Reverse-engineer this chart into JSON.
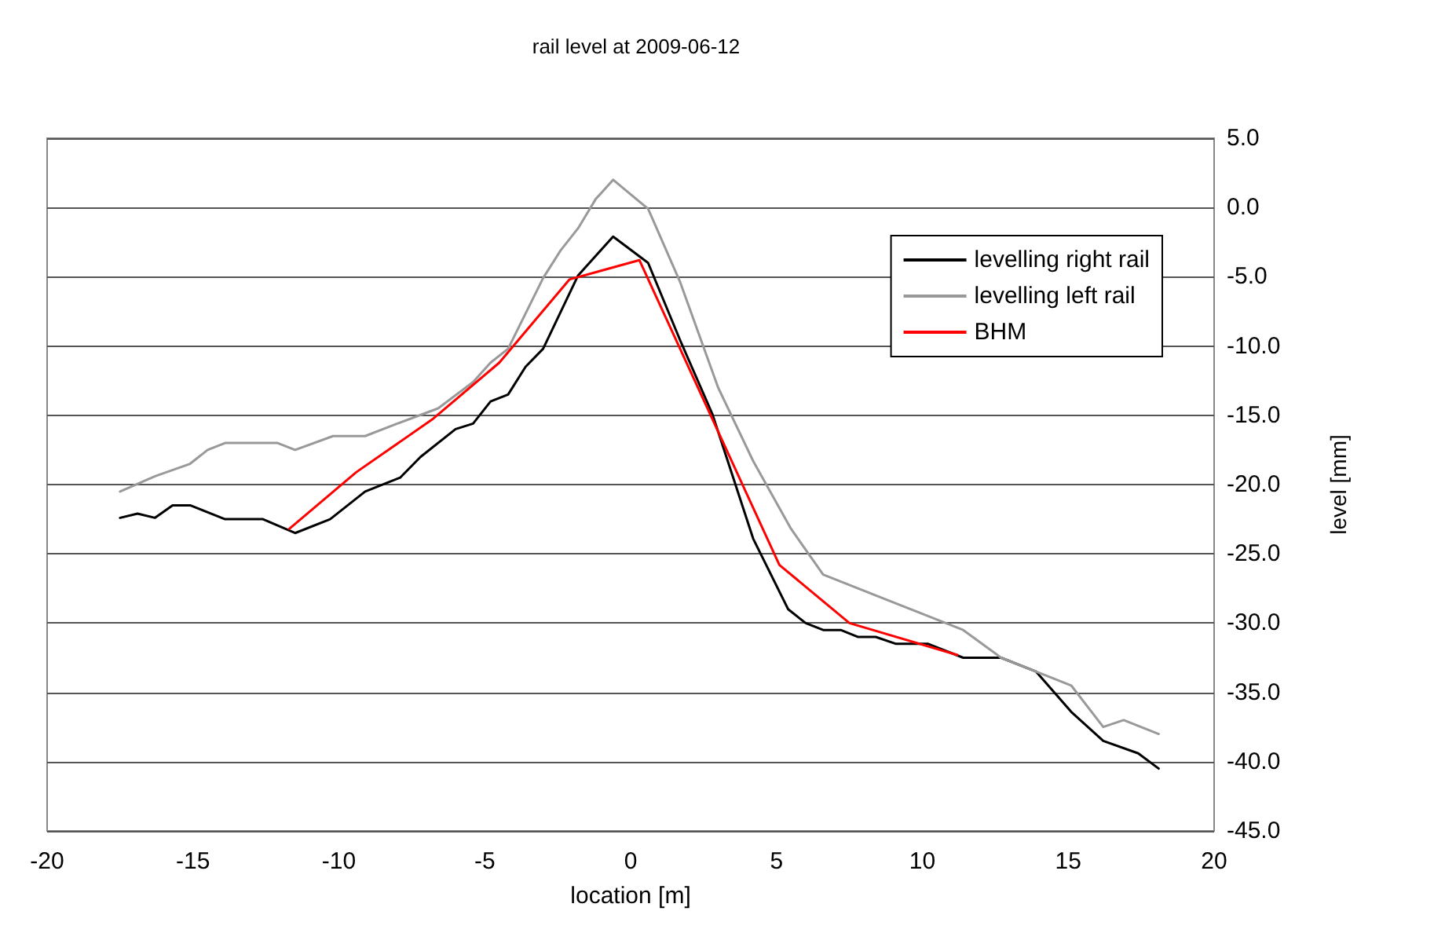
{
  "chart_data": {
    "type": "line",
    "title": "rail level at 2009-06-12",
    "xlabel": "location [m]",
    "ylabel": "level [mm]",
    "xlim": [
      -20,
      20
    ],
    "xticks": [
      -20,
      -15,
      -10,
      -5,
      0,
      5,
      10,
      15,
      20
    ],
    "ylim": [
      -45,
      5
    ],
    "yticks": [
      {
        "value": 5,
        "label": "5.0"
      },
      {
        "value": 0,
        "label": "0.0"
      },
      {
        "value": -5,
        "label": "-5.0"
      },
      {
        "value": -10,
        "label": "-10.0"
      },
      {
        "value": -15,
        "label": "-15.0"
      },
      {
        "value": -20,
        "label": "-20.0"
      },
      {
        "value": -25,
        "label": "-25.0"
      },
      {
        "value": -30,
        "label": "-30.0"
      },
      {
        "value": -35,
        "label": "-35.0"
      },
      {
        "value": -40,
        "label": "-40.0"
      },
      {
        "value": -45,
        "label": "-45.0"
      }
    ],
    "grid": "y",
    "legend": "top right",
    "marker": "none",
    "line_style": "solid",
    "series": [
      {
        "name": "levelling right rail",
        "color": "#000000",
        "x": [
          -17.5,
          -16.9,
          -16.3,
          -15.7,
          -15.1,
          -13.9,
          -12.6,
          -11.5,
          -10.3,
          -9.1,
          -7.9,
          -7.2,
          -6.0,
          -5.4,
          -4.8,
          -4.2,
          -3.6,
          -3.0,
          -1.8,
          -0.6,
          0.6,
          1.7,
          2.8,
          4.2,
          5.4,
          6.0,
          6.6,
          7.2,
          7.8,
          8.4,
          9.1,
          10.2,
          11.4,
          12.7,
          13.9,
          15.1,
          16.2,
          17.4,
          18.1
        ],
        "values": [
          -22.4,
          -22.1,
          -22.4,
          -21.5,
          -21.5,
          -22.5,
          -22.5,
          -23.5,
          -22.5,
          -20.5,
          -19.5,
          -18.0,
          -16.0,
          -15.6,
          -14.0,
          -13.5,
          -11.5,
          -10.2,
          -4.9,
          -2.1,
          -4.0,
          -9.6,
          -14.9,
          -23.9,
          -29.0,
          -30.0,
          -30.5,
          -30.5,
          -31.0,
          -31.0,
          -31.5,
          -31.5,
          -32.5,
          -32.5,
          -33.5,
          -36.4,
          -38.5,
          -39.4,
          -40.5
        ]
      },
      {
        "name": "levelling left rail",
        "color": "#999999",
        "x": [
          -17.5,
          -16.3,
          -15.1,
          -14.5,
          -13.9,
          -12.1,
          -11.5,
          -10.2,
          -9.1,
          -8.0,
          -6.6,
          -5.4,
          -4.8,
          -4.2,
          -3.0,
          -2.4,
          -1.8,
          -1.2,
          -0.6,
          0.6,
          1.7,
          3.0,
          4.2,
          5.5,
          6.6,
          11.4,
          12.7,
          13.9,
          15.1,
          16.2,
          16.9,
          18.1
        ],
        "values": [
          -20.5,
          -19.4,
          -18.5,
          -17.5,
          -17.0,
          -17.0,
          -17.5,
          -16.5,
          -16.5,
          -15.6,
          -14.5,
          -12.6,
          -11.2,
          -10.2,
          -5.1,
          -3.1,
          -1.5,
          0.6,
          2.0,
          -0.1,
          -5.4,
          -13.0,
          -18.3,
          -23.2,
          -26.5,
          -30.5,
          -32.5,
          -33.5,
          -34.5,
          -37.5,
          -37.0,
          -38.0
        ]
      },
      {
        "name": "BHM",
        "color": "#ff0000",
        "x": [
          -11.7,
          -9.4,
          -6.8,
          -4.5,
          -2.1,
          0.3,
          5.1,
          7.5,
          11.2
        ],
        "values": [
          -23.2,
          -19.1,
          -15.3,
          -11.2,
          -5.2,
          -3.8,
          -25.8,
          -30.0,
          -32.3
        ]
      }
    ]
  }
}
